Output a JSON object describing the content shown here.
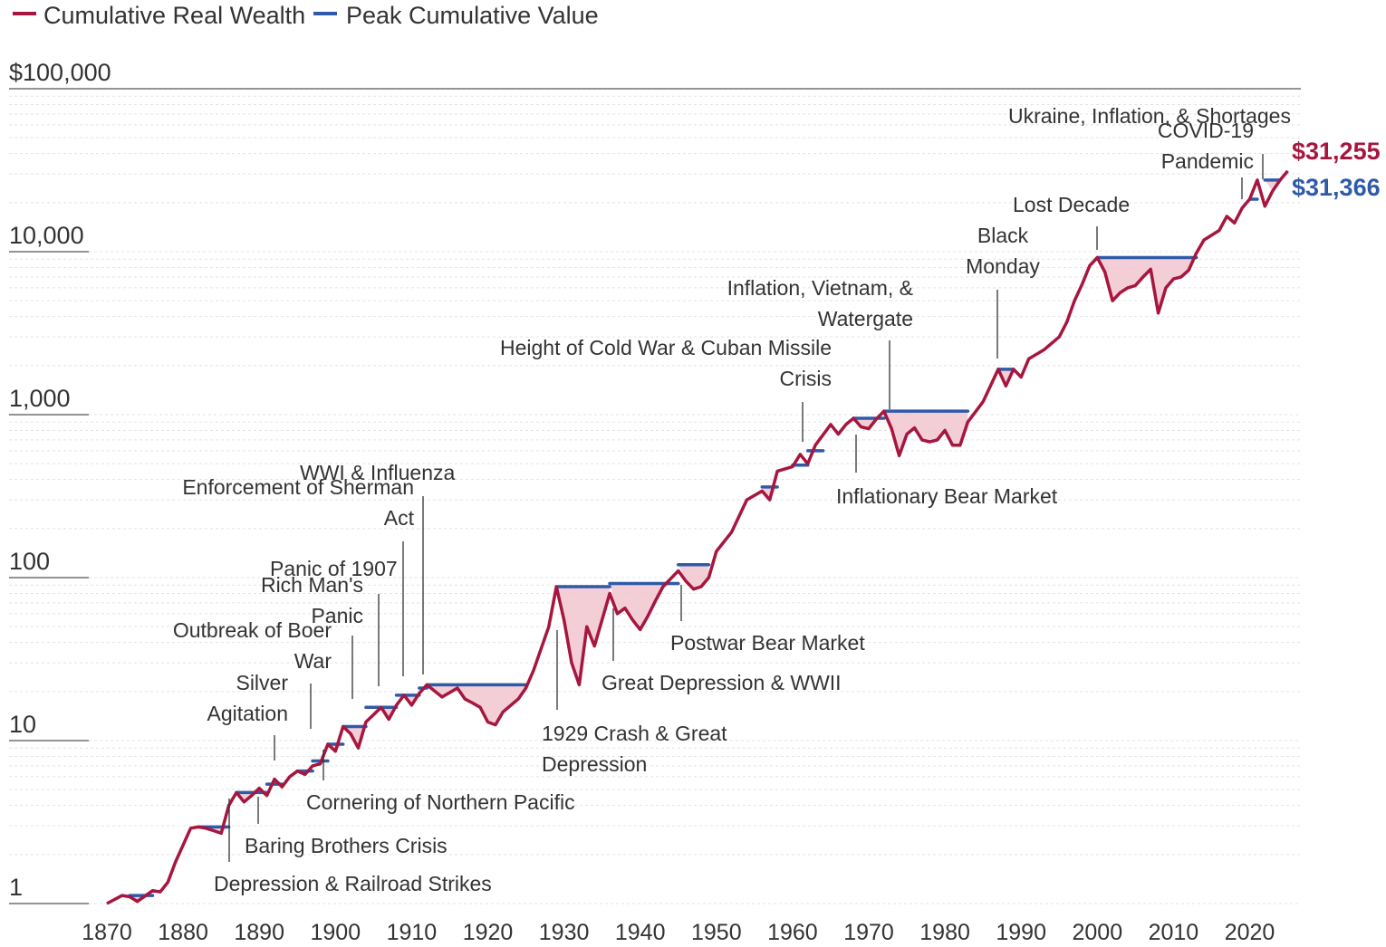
{
  "chart_data": {
    "type": "line",
    "title": "",
    "xlabel": "",
    "ylabel": "",
    "y_scale": "log",
    "ylim": [
      1,
      100000
    ],
    "xlim": [
      1870,
      2025
    ],
    "grid": true,
    "legend_position": "top-left",
    "colors": {
      "wealth": "#a6163e",
      "peak": "#2f5aa8",
      "drawdown_fill": "#f2c6cf"
    },
    "legend": [
      {
        "key": "wealth",
        "label": "Cumulative Real Wealth"
      },
      {
        "key": "peak",
        "label": "Peak Cumulative Value"
      }
    ],
    "y_ticks": [
      {
        "value": 1,
        "label": "1"
      },
      {
        "value": 10,
        "label": "10"
      },
      {
        "value": 100,
        "label": "100"
      },
      {
        "value": 1000,
        "label": "1,000"
      },
      {
        "value": 10000,
        "label": "10,000"
      },
      {
        "value": 100000,
        "label": "$100,000"
      }
    ],
    "x_ticks": [
      {
        "value": 1870,
        "label": "1870"
      },
      {
        "value": 1880,
        "label": "1880"
      },
      {
        "value": 1890,
        "label": "1890"
      },
      {
        "value": 1900,
        "label": "1900"
      },
      {
        "value": 1910,
        "label": "1910"
      },
      {
        "value": 1920,
        "label": "1920"
      },
      {
        "value": 1930,
        "label": "1930"
      },
      {
        "value": 1940,
        "label": "1940"
      },
      {
        "value": 1950,
        "label": "1950"
      },
      {
        "value": 1960,
        "label": "1960"
      },
      {
        "value": 1970,
        "label": "1970"
      },
      {
        "value": 1980,
        "label": "1980"
      },
      {
        "value": 1990,
        "label": "1990"
      },
      {
        "value": 2000,
        "label": "2000"
      },
      {
        "value": 2010,
        "label": "2010"
      },
      {
        "value": 2020,
        "label": "2020"
      }
    ],
    "series": [
      {
        "name": "Cumulative Real Wealth",
        "x": [
          1870,
          1872,
          1873,
          1874,
          1876,
          1877,
          1878,
          1879,
          1881,
          1882,
          1883,
          1884,
          1885,
          1886,
          1887,
          1888,
          1889,
          1890,
          1891,
          1892,
          1893,
          1894,
          1895,
          1896,
          1897,
          1898,
          1899,
          1900,
          1901,
          1902,
          1903,
          1904,
          1906,
          1907,
          1908,
          1909,
          1910,
          1911,
          1912,
          1914,
          1916,
          1917,
          1918,
          1919,
          1920,
          1921,
          1922,
          1924,
          1925,
          1926,
          1928,
          1929,
          1930,
          1931,
          1932,
          1933,
          1934,
          1935,
          1936,
          1937,
          1938,
          1939,
          1940,
          1941,
          1942,
          1943,
          1945,
          1946,
          1947,
          1948,
          1949,
          1950,
          1952,
          1954,
          1956,
          1957,
          1958,
          1960,
          1961,
          1962,
          1963,
          1965,
          1966,
          1967,
          1968,
          1969,
          1970,
          1971,
          1972,
          1973,
          1974,
          1975,
          1976,
          1977,
          1978,
          1979,
          1980,
          1981,
          1982,
          1983,
          1985,
          1987,
          1988,
          1989,
          1990,
          1991,
          1993,
          1995,
          1996,
          1997,
          1998,
          1999,
          2000,
          2001,
          2002,
          2003,
          2004,
          2005,
          2006,
          2007,
          2008,
          2009,
          2010,
          2011,
          2012,
          2013,
          2014,
          2016,
          2017,
          2018,
          2019,
          2020,
          2021,
          2022,
          2023,
          2024,
          2025
        ],
        "values": [
          1.0,
          1.12,
          1.1,
          1.03,
          1.2,
          1.18,
          1.35,
          1.8,
          2.9,
          2.95,
          2.9,
          2.8,
          2.7,
          4.0,
          4.8,
          4.2,
          4.6,
          5.1,
          4.6,
          5.8,
          5.2,
          6.0,
          6.5,
          6.2,
          7.0,
          7.2,
          9.5,
          8.6,
          12.2,
          11.0,
          9.0,
          13.0,
          16.0,
          13.5,
          16.5,
          19.0,
          16.5,
          19.5,
          22.0,
          18.5,
          21.0,
          18.0,
          17.0,
          16.0,
          13.0,
          12.5,
          15.0,
          18.0,
          21.0,
          27.0,
          50.0,
          88.0,
          55.0,
          30.0,
          22.0,
          50.0,
          38.0,
          55.0,
          80.0,
          60.0,
          65.0,
          55.0,
          48.0,
          58.0,
          72.0,
          88.0,
          110.0,
          95.0,
          85.0,
          88.0,
          100.0,
          145.0,
          190.0,
          300.0,
          340.0,
          300.0,
          450.0,
          480.0,
          570.0,
          500.0,
          650.0,
          870.0,
          760.0,
          870.0,
          950.0,
          840.0,
          820.0,
          940.0,
          1050.0,
          820.0,
          560.0,
          760.0,
          830.0,
          700.0,
          680.0,
          700.0,
          800.0,
          650.0,
          650.0,
          900.0,
          1200.0,
          1900.0,
          1500.0,
          1900.0,
          1700.0,
          2200.0,
          2500.0,
          3000.0,
          3700.0,
          5000.0,
          6300.0,
          8200.0,
          9200.0,
          7500.0,
          5000.0,
          5600.0,
          6000.0,
          6200.0,
          7000.0,
          7800.0,
          4200.0,
          6000.0,
          6800.0,
          7000.0,
          7700.0,
          9800.0,
          11800.0,
          13500.0,
          16500.0,
          15000.0,
          18500.0,
          21000.0,
          27500.0,
          19000.0,
          23500.0,
          27500.0,
          31255.0
        ]
      },
      {
        "name": "Peak Cumulative Value",
        "segments": [
          [
            [
              1873,
              1.12
            ],
            [
              1876,
              1.12
            ]
          ],
          [
            [
              1882,
              2.95
            ],
            [
              1886,
              2.95
            ]
          ],
          [
            [
              1887,
              4.8
            ],
            [
              1891,
              4.8
            ]
          ],
          [
            [
              1891,
              5.4
            ],
            [
              1893,
              5.4
            ]
          ],
          [
            [
              1895,
              6.5
            ],
            [
              1897,
              6.5
            ]
          ],
          [
            [
              1897,
              7.5
            ],
            [
              1899,
              7.5
            ]
          ],
          [
            [
              1899,
              9.5
            ],
            [
              1901,
              9.5
            ]
          ],
          [
            [
              1901,
              12.2
            ],
            [
              1904,
              12.2
            ]
          ],
          [
            [
              1904,
              16.0
            ],
            [
              1908,
              16.0
            ]
          ],
          [
            [
              1908,
              19.0
            ],
            [
              1911,
              19.0
            ]
          ],
          [
            [
              1911,
              21.0
            ],
            [
              1912,
              21.0
            ]
          ],
          [
            [
              1912,
              22.0
            ],
            [
              1925,
              22.0
            ]
          ],
          [
            [
              1929,
              88.0
            ],
            [
              1936,
              88.0
            ]
          ],
          [
            [
              1936,
              92.0
            ],
            [
              1945,
              92.0
            ]
          ],
          [
            [
              1945,
              120.0
            ],
            [
              1949,
              120.0
            ]
          ],
          [
            [
              1956,
              360.0
            ],
            [
              1958,
              360.0
            ]
          ],
          [
            [
              1960,
              490.0
            ],
            [
              1962,
              490.0
            ]
          ],
          [
            [
              1962,
              600.0
            ],
            [
              1964,
              600.0
            ]
          ],
          [
            [
              1968,
              950.0
            ],
            [
              1972,
              950.0
            ]
          ],
          [
            [
              1972,
              1050.0
            ],
            [
              1983,
              1050.0
            ]
          ],
          [
            [
              1987,
              1900.0
            ],
            [
              1989,
              1900.0
            ]
          ],
          [
            [
              2000,
              9200.0
            ],
            [
              2013,
              9200.0
            ]
          ],
          [
            [
              2020,
              21000.0
            ],
            [
              2021,
              21000.0
            ]
          ],
          [
            [
              2022,
              27500.0
            ],
            [
              2024,
              27500.0
            ]
          ]
        ],
        "values": []
      }
    ],
    "annotations": [
      {
        "text": [
          "Depression & Railroad Strikes"
        ],
        "year": 1887,
        "value": 4.0
      },
      {
        "text": [
          "Baring Brothers Crisis"
        ],
        "year": 1890,
        "value": 4.6
      },
      {
        "text": [
          "Silver",
          "Agitation"
        ],
        "year": 1893,
        "value": 5.2
      },
      {
        "text": [
          "Outbreak of Boer",
          "War"
        ],
        "year": 1898,
        "value": 7.2
      },
      {
        "text": [
          "Cornering of Northern Pacific"
        ],
        "year": 1899,
        "value": 8.6
      },
      {
        "text": [
          "Rich Man's",
          "Panic"
        ],
        "year": 1903,
        "value": 9.0
      },
      {
        "text": [
          "Panic of 1907"
        ],
        "year": 1907,
        "value": 13.5
      },
      {
        "text": [
          "Enforcement of Sherman",
          "Act"
        ],
        "year": 1910,
        "value": 16.5
      },
      {
        "text": [
          "WWI & Influenza"
        ],
        "year": 1912,
        "value": 22.0
      },
      {
        "text": [
          "1929 Crash & Great",
          "Depression"
        ],
        "year": 1930,
        "value": 55.0
      },
      {
        "text": [
          "Great Depression & WWII"
        ],
        "year": 1937,
        "value": 60.0
      },
      {
        "text": [
          "Postwar Bear Market"
        ],
        "year": 1946,
        "value": 95.0
      },
      {
        "text": [
          "Height of Cold War & Cuban Missile",
          "Crisis"
        ],
        "year": 1962,
        "value": 500.0
      },
      {
        "text": [
          "Inflationary Bear Market"
        ],
        "year": 1969,
        "value": 840.0
      },
      {
        "text": [
          "Inflation, Vietnam, &",
          "Watergate"
        ],
        "year": 1973,
        "value": 1050.0
      },
      {
        "text": [
          "Black",
          "Monday"
        ],
        "year": 1987,
        "value": 1900.0
      },
      {
        "text": [
          "Lost Decade"
        ],
        "year": 2000,
        "value": 9200.0
      },
      {
        "text": [
          "COVID-19",
          "Pandemic"
        ],
        "year": 2020,
        "value": 21000.0
      },
      {
        "text": [
          "Ukraine, Inflation, & Shortages"
        ],
        "year": 2022,
        "value": 27500.0
      }
    ],
    "end_labels": [
      {
        "text": "$31,255",
        "series": "wealth"
      },
      {
        "text": "$31,366",
        "series": "peak"
      }
    ]
  }
}
